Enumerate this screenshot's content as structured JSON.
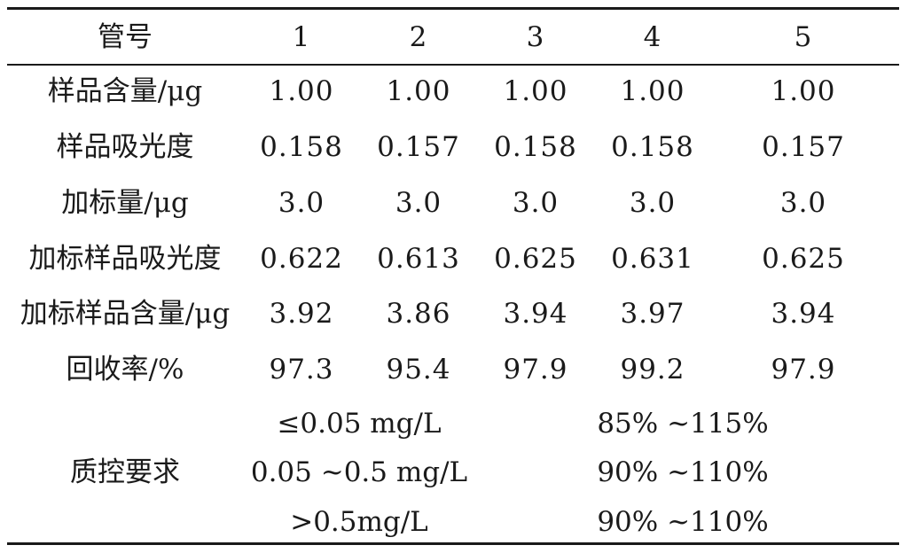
{
  "table": {
    "header": {
      "label": "管号",
      "tubes": [
        "1",
        "2",
        "3",
        "4",
        "5"
      ]
    },
    "rows": [
      {
        "label": "样品含量/μg",
        "values": [
          "1.00",
          "1.00",
          "1.00",
          "1.00",
          "1.00"
        ]
      },
      {
        "label": "样品吸光度",
        "values": [
          "0.158",
          "0.157",
          "0.158",
          "0.158",
          "0.157"
        ]
      },
      {
        "label": "加标量/μg",
        "values": [
          "3.0",
          "3.0",
          "3.0",
          "3.0",
          "3.0"
        ]
      },
      {
        "label": "加标样品吸光度",
        "values": [
          "0.622",
          "0.613",
          "0.625",
          "0.631",
          "0.625"
        ]
      },
      {
        "label": "加标样品含量/μg",
        "values": [
          "3.92",
          "3.86",
          "3.94",
          "3.97",
          "3.94"
        ]
      },
      {
        "label": "回收率/%",
        "values": [
          "97.3",
          "95.4",
          "97.9",
          "99.2",
          "97.9"
        ]
      }
    ],
    "qc": {
      "label": "质控要求",
      "items": [
        {
          "range": "≤0.05 mg/L",
          "requirement": "85% ~115%"
        },
        {
          "range": "0.05 ~0.5 mg/L",
          "requirement": "90% ~110%"
        },
        {
          "range": ">0.5mg/L",
          "requirement": "90% ~110%"
        }
      ]
    }
  }
}
